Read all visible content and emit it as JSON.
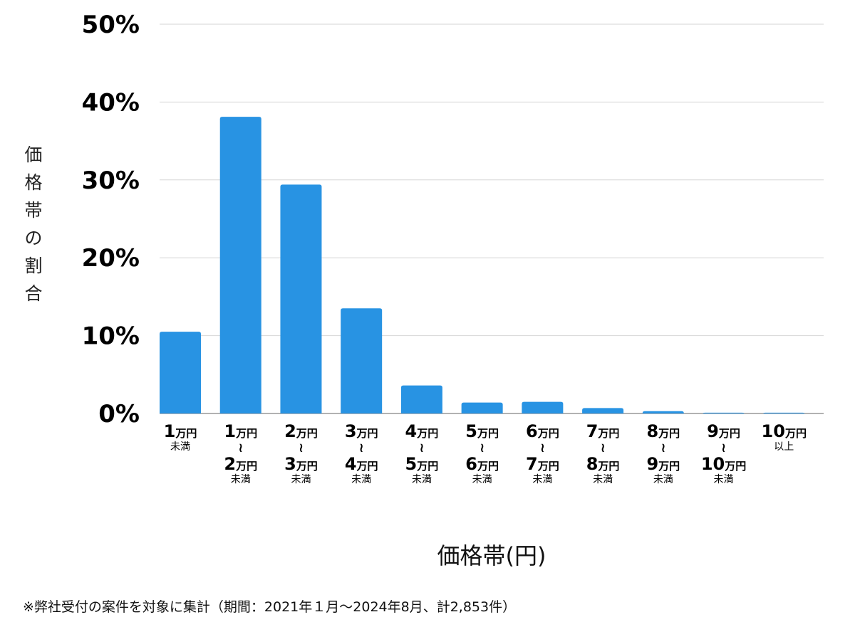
{
  "chart_data": {
    "type": "bar",
    "ylabel": "価格帯の割合",
    "xlabel": "価格帯(円)",
    "ylim": [
      0,
      50
    ],
    "yticks": [
      "0%",
      "10%",
      "20%",
      "30%",
      "40%",
      "50%"
    ],
    "grid": true,
    "bar_color": "#2893e3",
    "categories": [
      {
        "top_num": "1",
        "top_unit": "万円",
        "sep": "",
        "bottom_num": "",
        "bottom_unit": "",
        "note": "未満"
      },
      {
        "top_num": "1",
        "top_unit": "万円",
        "sep": "≀",
        "bottom_num": "2",
        "bottom_unit": "万円",
        "note": "未満"
      },
      {
        "top_num": "2",
        "top_unit": "万円",
        "sep": "≀",
        "bottom_num": "3",
        "bottom_unit": "万円",
        "note": "未満"
      },
      {
        "top_num": "3",
        "top_unit": "万円",
        "sep": "≀",
        "bottom_num": "4",
        "bottom_unit": "万円",
        "note": "未満"
      },
      {
        "top_num": "4",
        "top_unit": "万円",
        "sep": "≀",
        "bottom_num": "5",
        "bottom_unit": "万円",
        "note": "未満"
      },
      {
        "top_num": "5",
        "top_unit": "万円",
        "sep": "≀",
        "bottom_num": "6",
        "bottom_unit": "万円",
        "note": "未満"
      },
      {
        "top_num": "6",
        "top_unit": "万円",
        "sep": "≀",
        "bottom_num": "7",
        "bottom_unit": "万円",
        "note": "未満"
      },
      {
        "top_num": "7",
        "top_unit": "万円",
        "sep": "≀",
        "bottom_num": "8",
        "bottom_unit": "万円",
        "note": "未満"
      },
      {
        "top_num": "8",
        "top_unit": "万円",
        "sep": "≀",
        "bottom_num": "9",
        "bottom_unit": "万円",
        "note": "未満"
      },
      {
        "top_num": "9",
        "top_unit": "万円",
        "sep": "≀",
        "bottom_num": "10",
        "bottom_unit": "万円",
        "note": "未満"
      },
      {
        "top_num": "10",
        "top_unit": "万円",
        "sep": "",
        "bottom_num": "",
        "bottom_unit": "",
        "note": "以上"
      }
    ],
    "values": [
      10.5,
      38.1,
      29.4,
      13.5,
      3.6,
      1.4,
      1.5,
      0.7,
      0.3,
      0.1,
      0.1
    ]
  },
  "footnote": "※弊社受付の案件を対象に集計（期間：2021年１月〜2024年8月、計2,853件）"
}
